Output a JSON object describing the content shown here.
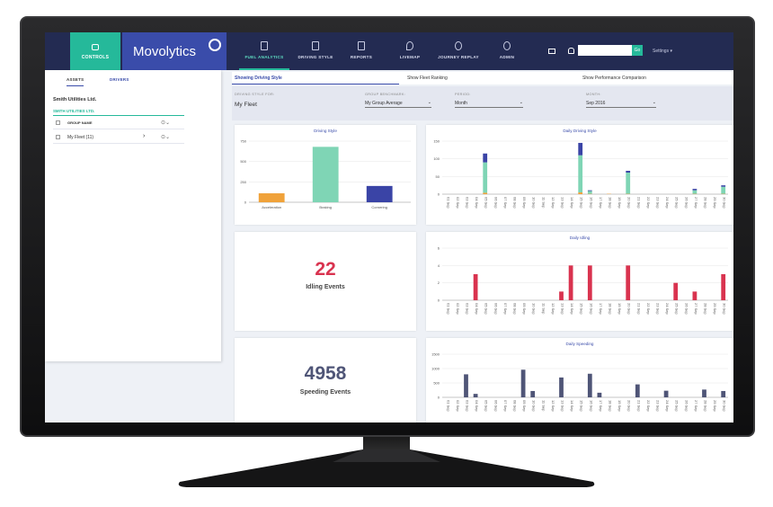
{
  "nav": {
    "controls_label": "CONTROLS",
    "brand": "Movolytics",
    "items": [
      {
        "label": "FUEL ANALYTICS"
      },
      {
        "label": "DRIVING STYLE"
      },
      {
        "label": "REPORTS"
      },
      {
        "label": "LIVEMAP"
      },
      {
        "label": "JOURNEY REPLAY"
      },
      {
        "label": "ADMIN"
      }
    ],
    "go_label": "Go",
    "settings_label": "Settings"
  },
  "sidebar": {
    "tabs": [
      "ASSETS",
      "DRIVERS"
    ],
    "company": "Smith Utilities Ltd.",
    "group": "SMITH UTILITIES LTD.",
    "col_header": "GROUP NAME",
    "rows": [
      {
        "name": "My Fleet (11)"
      }
    ]
  },
  "tabs": [
    "Showing Driving Style",
    "Show Fleet Ranking",
    "Show Performance Comparison"
  ],
  "filters": {
    "style_label": "DRIVING STYLE FOR:",
    "style_value": "My Fleet",
    "bench_label": "GROUP BENCHMARK:",
    "bench_value": "My Group Average",
    "period_label": "PERIOD:",
    "period_value": "Month",
    "month_label": "MONTH:",
    "month_value": "Sep 2016"
  },
  "colors": {
    "accel": "#f0a23a",
    "braking": "#7fd5b5",
    "cornering": "#3a44a6",
    "idle": "#d9334f",
    "speed": "#4f5577",
    "brand": "#3a4caa",
    "teal": "#25b99a"
  },
  "cards": {
    "idling": {
      "value": "22",
      "label": "Idling Events"
    },
    "speeding": {
      "value": "4958",
      "label": "Speeding Events"
    }
  },
  "chart_data": [
    {
      "type": "bar",
      "title": "Driving Style",
      "categories": [
        "Acceleration",
        "Braking",
        "Cornering"
      ],
      "values": [
        110,
        680,
        200
      ],
      "ylim": [
        0,
        750
      ],
      "yticks": [
        0,
        250,
        500,
        750
      ]
    },
    {
      "type": "bar",
      "title": "Daily Driving Style",
      "x": [
        "01 Sep",
        "02 Sep",
        "03 Sep",
        "04 Sep",
        "05 Sep",
        "06 Sep",
        "07 Sep",
        "08 Sep",
        "09 Sep",
        "10 Sep",
        "11 Sep",
        "12 Sep",
        "13 Sep",
        "14 Sep",
        "15 Sep",
        "16 Sep",
        "17 Sep",
        "18 Sep",
        "19 Sep",
        "20 Sep",
        "21 Sep",
        "22 Sep",
        "23 Sep",
        "24 Sep",
        "25 Sep",
        "26 Sep",
        "27 Sep",
        "28 Sep",
        "29 Sep",
        "30 Sep"
      ],
      "series": [
        {
          "name": "Acceleration",
          "values": [
            0,
            0,
            0,
            0,
            4,
            0,
            0,
            0,
            0,
            0,
            0,
            0,
            0,
            0,
            5,
            1,
            0,
            1,
            0,
            1,
            0,
            0,
            0,
            0,
            0,
            0,
            1,
            0,
            0,
            1
          ]
        },
        {
          "name": "Braking",
          "values": [
            0,
            0,
            0,
            0,
            86,
            0,
            0,
            0,
            0,
            0,
            0,
            0,
            0,
            0,
            105,
            8,
            0,
            0,
            0,
            60,
            0,
            0,
            0,
            0,
            0,
            0,
            10,
            0,
            0,
            20
          ]
        },
        {
          "name": "Cornering",
          "values": [
            0,
            0,
            0,
            0,
            25,
            0,
            0,
            0,
            0,
            0,
            0,
            0,
            0,
            0,
            35,
            2,
            0,
            0,
            0,
            5,
            0,
            0,
            0,
            0,
            0,
            0,
            4,
            0,
            0,
            4
          ]
        }
      ],
      "ylim": [
        0,
        150
      ],
      "yticks": [
        0,
        50,
        100,
        150
      ]
    },
    {
      "type": "bar",
      "title": "Daily Idling",
      "x": [
        "01 Sep",
        "02 Sep",
        "03 Sep",
        "04 Sep",
        "05 Sep",
        "06 Sep",
        "07 Sep",
        "08 Sep",
        "09 Sep",
        "10 Sep",
        "11 Sep",
        "12 Sep",
        "13 Sep",
        "14 Sep",
        "15 Sep",
        "16 Sep",
        "17 Sep",
        "18 Sep",
        "19 Sep",
        "20 Sep",
        "21 Sep",
        "22 Sep",
        "23 Sep",
        "24 Sep",
        "25 Sep",
        "26 Sep",
        "27 Sep",
        "28 Sep",
        "29 Sep",
        "30 Sep"
      ],
      "series": [
        {
          "name": "Idling",
          "values": [
            0,
            0,
            0,
            3,
            0,
            0,
            0,
            0,
            0,
            0,
            0,
            0,
            1,
            4,
            0,
            4,
            0,
            0,
            0,
            4,
            0,
            0,
            0,
            0,
            2,
            0,
            1,
            0,
            0,
            3
          ]
        }
      ],
      "ylim": [
        0,
        6
      ],
      "yticks": [
        0,
        2,
        4,
        6
      ]
    },
    {
      "type": "bar",
      "title": "Daily Speeding",
      "x": [
        "01 Sep",
        "02 Sep",
        "03 Sep",
        "04 Sep",
        "05 Sep",
        "06 Sep",
        "07 Sep",
        "08 Sep",
        "09 Sep",
        "10 Sep",
        "11 Sep",
        "12 Sep",
        "13 Sep",
        "14 Sep",
        "15 Sep",
        "16 Sep",
        "17 Sep",
        "18 Sep",
        "19 Sep",
        "20 Sep",
        "21 Sep",
        "22 Sep",
        "23 Sep",
        "24 Sep",
        "25 Sep",
        "26 Sep",
        "27 Sep",
        "28 Sep",
        "29 Sep",
        "30 Sep"
      ],
      "series": [
        {
          "name": "Speeding",
          "values": [
            0,
            0,
            800,
            120,
            0,
            0,
            0,
            0,
            960,
            220,
            0,
            0,
            690,
            0,
            0,
            820,
            160,
            0,
            0,
            0,
            450,
            0,
            0,
            230,
            0,
            0,
            0,
            270,
            0,
            220
          ]
        }
      ],
      "ylim": [
        0,
        1500
      ],
      "yticks": [
        0,
        500,
        1000,
        1500
      ]
    }
  ]
}
